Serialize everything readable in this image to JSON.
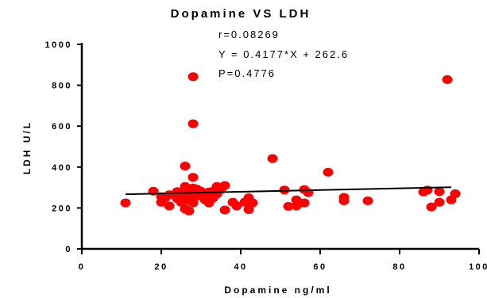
{
  "chart_data": {
    "type": "scatter",
    "title": "Dopamine VS LDH",
    "xlabel": "Dopamine ng/ml",
    "ylabel": "LDH U/L",
    "xlim": [
      0,
      100
    ],
    "ylim": [
      0,
      1000
    ],
    "xticks": [
      0,
      20,
      40,
      60,
      80,
      100
    ],
    "yticks": [
      0,
      200,
      400,
      600,
      800,
      1000
    ],
    "xtick_labels": [
      "0",
      "20",
      "40",
      "60",
      "80",
      "100"
    ],
    "ytick_labels": [
      "0",
      "200",
      "400",
      "600",
      "800",
      "1000"
    ],
    "grid": false,
    "point_color": "#ff0000",
    "fit_line_color": "#000000",
    "annotations": [
      {
        "text": "r=0.08269",
        "color": "#1f3fbf"
      },
      {
        "text": "Y = 0.4177*X + 262.6",
        "color": "#ff2020"
      },
      {
        "text": "P=0.4776",
        "color": "#000000"
      }
    ],
    "fit": {
      "slope": 0.4177,
      "intercept": 262.6,
      "x_range": [
        11,
        93
      ]
    },
    "points": [
      [
        11,
        225
      ],
      [
        18,
        282
      ],
      [
        20,
        255
      ],
      [
        20,
        228
      ],
      [
        21,
        250
      ],
      [
        22,
        265
      ],
      [
        22,
        210
      ],
      [
        24,
        280
      ],
      [
        24,
        245
      ],
      [
        25,
        260
      ],
      [
        25,
        228
      ],
      [
        26,
        405
      ],
      [
        26,
        305
      ],
      [
        26,
        290
      ],
      [
        26,
        265
      ],
      [
        26,
        195
      ],
      [
        27,
        280
      ],
      [
        27,
        250
      ],
      [
        27,
        235
      ],
      [
        27,
        185
      ],
      [
        28,
        842
      ],
      [
        28,
        612
      ],
      [
        28,
        350
      ],
      [
        28,
        298
      ],
      [
        28,
        265
      ],
      [
        28,
        225
      ],
      [
        29,
        292
      ],
      [
        29,
        258
      ],
      [
        30,
        282
      ],
      [
        30,
        262
      ],
      [
        31,
        240
      ],
      [
        32,
        278
      ],
      [
        32,
        225
      ],
      [
        33,
        282
      ],
      [
        33,
        248
      ],
      [
        34,
        268
      ],
      [
        34,
        305
      ],
      [
        35,
        290
      ],
      [
        36,
        310
      ],
      [
        36,
        190
      ],
      [
        38,
        228
      ],
      [
        39,
        210
      ],
      [
        41,
        228
      ],
      [
        42,
        250
      ],
      [
        42,
        192
      ],
      [
        43,
        225
      ],
      [
        48,
        442
      ],
      [
        51,
        288
      ],
      [
        52,
        208
      ],
      [
        54,
        240
      ],
      [
        54,
        210
      ],
      [
        56,
        290
      ],
      [
        56,
        225
      ],
      [
        57,
        275
      ],
      [
        62,
        375
      ],
      [
        66,
        252
      ],
      [
        66,
        235
      ],
      [
        72,
        235
      ],
      [
        86,
        278
      ],
      [
        87,
        288
      ],
      [
        88,
        205
      ],
      [
        90,
        280
      ],
      [
        90,
        228
      ],
      [
        92,
        828
      ],
      [
        93,
        240
      ],
      [
        94,
        270
      ]
    ]
  }
}
